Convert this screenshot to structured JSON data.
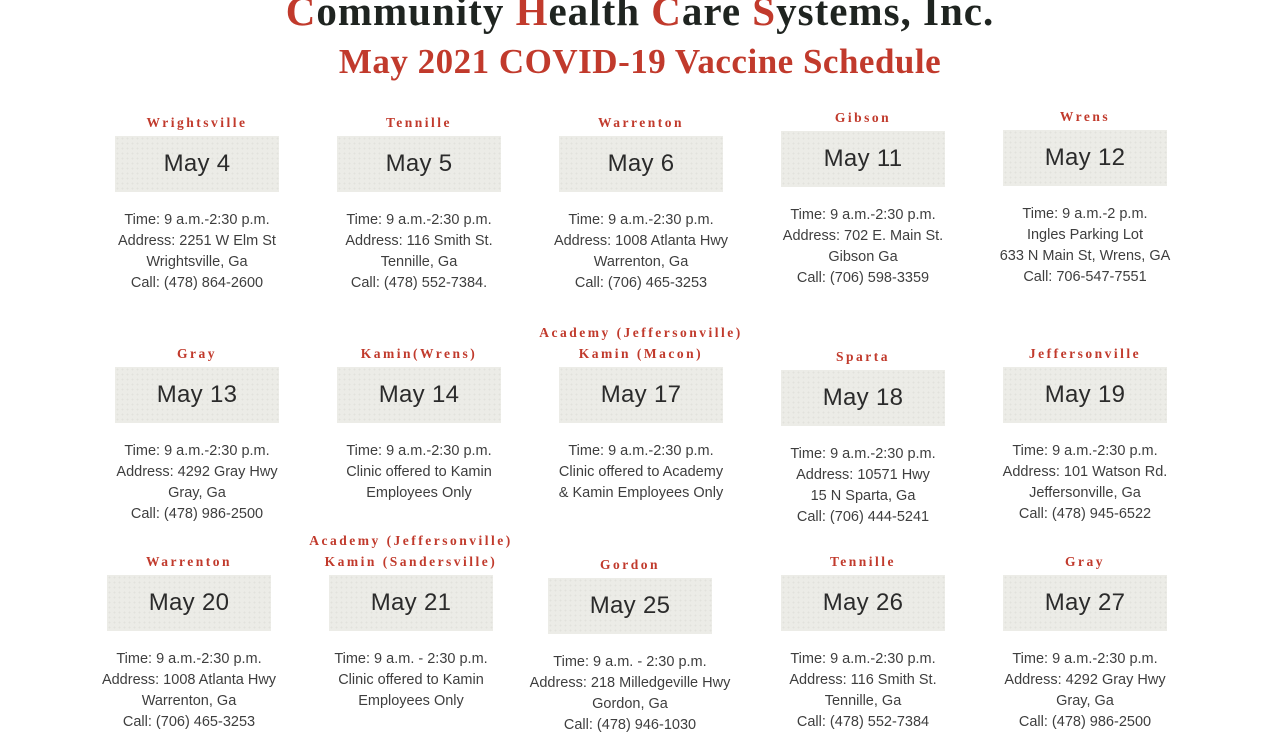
{
  "page": {
    "title_line1_parts": [
      {
        "initial": "C",
        "rest": "ommunity"
      },
      {
        "initial": "H",
        "rest": "ealth"
      },
      {
        "initial": "C",
        "rest": "are"
      },
      {
        "initial": "S",
        "rest": "ystems,"
      },
      {
        "initial": "",
        "rest": "Inc."
      }
    ],
    "title_line1_plain": "Community Health Care Systems, Inc.",
    "title_line2": "May 2021 COVID-19 Vaccine Schedule"
  },
  "colors": {
    "accent_red": "#c13a2c",
    "title_dark": "#1f2420",
    "date_box_bg": "#ecece7",
    "date_text": "#2b2b2b",
    "details_text": "#3e3e3e",
    "background": "#ffffff"
  },
  "cards": [
    {
      "city_lines": [
        "Wrightsville"
      ],
      "date": "May 4",
      "details": [
        "Time: 9 a.m.-2:30 p.m.",
        "Address: 2251 W Elm St",
        "Wrightsville, Ga",
        "Call: (478) 864-2600"
      ]
    },
    {
      "city_lines": [
        "Tennille"
      ],
      "date": "May 5",
      "details": [
        "Time: 9 a.m.-2:30 p.m.",
        "Address: 116 Smith St.",
        "Tennille, Ga",
        "Call: (478) 552-7384."
      ]
    },
    {
      "city_lines": [
        "Warrenton"
      ],
      "date": "May 6",
      "details": [
        "Time: 9 a.m.-2:30 p.m.",
        "Address: 1008 Atlanta Hwy",
        "Warrenton, Ga",
        "Call: (706) 465-3253"
      ]
    },
    {
      "city_lines": [
        "Gibson"
      ],
      "date": "May 11",
      "details": [
        "Time: 9 a.m.-2:30 p.m.",
        "Address: 702 E. Main St.",
        "Gibson Ga",
        "Call: (706) 598-3359"
      ]
    },
    {
      "city_lines": [
        "Wrens"
      ],
      "date": "May 12",
      "details": [
        "Time: 9 a.m.-2 p.m.",
        "Ingles Parking Lot",
        "633 N Main St, Wrens, GA",
        "Call: 706-547-7551"
      ]
    },
    {
      "city_lines": [
        "Gray"
      ],
      "date": "May 13",
      "details": [
        "Time: 9 a.m.-2:30 p.m.",
        "Address: 4292 Gray Hwy",
        "Gray, Ga",
        "Call: (478) 986-2500"
      ]
    },
    {
      "city_lines": [
        "Kamin(Wrens)"
      ],
      "date": "May 14",
      "details": [
        "Time: 9 a.m.-2:30 p.m.",
        "Clinic offered to Kamin",
        "Employees Only"
      ]
    },
    {
      "city_lines": [
        "Academy (Jeffersonville)",
        "Kamin (Macon)"
      ],
      "date": "May 17",
      "details": [
        "Time: 9 a.m.-2:30 p.m.",
        "Clinic offered to Academy",
        "& Kamin Employees Only"
      ]
    },
    {
      "city_lines": [
        "Sparta"
      ],
      "date": "May 18",
      "details": [
        "Time: 9 a.m.-2:30 p.m.",
        "Address: 10571 Hwy",
        "15 N Sparta, Ga",
        "Call: (706) 444-5241"
      ]
    },
    {
      "city_lines": [
        "Jeffersonville"
      ],
      "date": "May 19",
      "details": [
        "Time: 9 a.m.-2:30 p.m.",
        "Address: 101 Watson Rd.",
        "Jeffersonville, Ga",
        "Call: (478) 945-6522"
      ]
    },
    {
      "city_lines": [
        "Warrenton"
      ],
      "date": "May 20",
      "details": [
        "Time: 9 a.m.-2:30 p.m.",
        "Address: 1008 Atlanta Hwy",
        "Warrenton, Ga",
        "Call: (706) 465-3253"
      ]
    },
    {
      "city_lines": [
        "Academy (Jeffersonville)",
        "Kamin (Sandersville)"
      ],
      "date": "May 21",
      "details": [
        "Time: 9 a.m. - 2:30 p.m.",
        "Clinic offered to Kamin",
        "Employees Only"
      ]
    },
    {
      "city_lines": [
        "Gordon"
      ],
      "date": "May 25",
      "details": [
        "Time: 9 a.m. - 2:30 p.m.",
        "Address: 218 Milledgeville Hwy",
        "Gordon, Ga",
        "Call: (478) 946-1030"
      ]
    },
    {
      "city_lines": [
        "Tennille"
      ],
      "date": "May 26",
      "details": [
        "Time: 9 a.m.-2:30 p.m.",
        "Address: 116 Smith St.",
        "Tennille, Ga",
        "Call: (478) 552-7384"
      ]
    },
    {
      "city_lines": [
        "Gray"
      ],
      "date": "May 27",
      "details": [
        "Time: 9 a.m.-2:30 p.m.",
        "Address: 4292 Gray Hwy",
        "Gray, Ga",
        "Call: (478) 986-2500"
      ]
    }
  ]
}
